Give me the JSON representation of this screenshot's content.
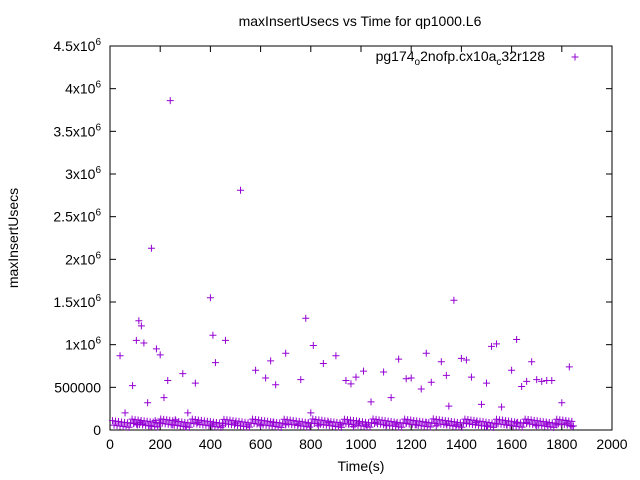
{
  "chart_data": {
    "type": "scatter",
    "title": "maxInsertUsecs vs Time for qp1000.L6",
    "xlabel": "Time(s)",
    "ylabel": "maxInsertUsecs",
    "xlim": [
      0,
      2000
    ],
    "ylim": [
      0,
      4500000
    ],
    "x_ticks": [
      "0",
      "200",
      "400",
      "600",
      "800",
      "1000",
      "1200",
      "1400",
      "1600",
      "1800",
      "2000"
    ],
    "y_ticks": [
      {
        "label": "0",
        "value": 0
      },
      {
        "label": "500000",
        "value": 500000
      },
      {
        "label": "1x10",
        "exp": "6",
        "value": 1000000
      },
      {
        "label": "1.5x10",
        "exp": "6",
        "value": 1500000
      },
      {
        "label": "2x10",
        "exp": "6",
        "value": 2000000
      },
      {
        "label": "2.5x10",
        "exp": "6",
        "value": 2500000
      },
      {
        "label": "3x10",
        "exp": "6",
        "value": 3000000
      },
      {
        "label": "3.5x10",
        "exp": "6",
        "value": 3500000
      },
      {
        "label": "4x10",
        "exp": "6",
        "value": 4000000
      },
      {
        "label": "4.5x10",
        "exp": "6",
        "value": 4500000
      }
    ],
    "grid": false,
    "legend_position": "top-right",
    "series": [
      {
        "name": "pg174_o2nofp.cx10a_c32r128",
        "name_parts": [
          {
            "t": "pg174"
          },
          {
            "t": "o",
            "sub": true
          },
          {
            "t": "2nofp.cx10a"
          },
          {
            "t": "c",
            "sub": true
          },
          {
            "t": "32r128"
          }
        ],
        "color": "#9400d3",
        "marker": "plus",
        "x": [
          40,
          60,
          90,
          105,
          115,
          125,
          135,
          150,
          165,
          185,
          200,
          215,
          230,
          240,
          260,
          290,
          310,
          340,
          400,
          410,
          420,
          460,
          520,
          580,
          620,
          640,
          660,
          700,
          760,
          780,
          800,
          810,
          850,
          900,
          940,
          960,
          980,
          1010,
          1040,
          1090,
          1120,
          1150,
          1180,
          1200,
          1240,
          1260,
          1280,
          1320,
          1340,
          1350,
          1370,
          1400,
          1420,
          1440,
          1480,
          1500,
          1520,
          1540,
          1560,
          1600,
          1620,
          1640,
          1660,
          1680,
          1700,
          1720,
          1740,
          1760,
          1800,
          1830,
          95,
          110,
          120,
          130,
          160,
          180,
          200,
          250,
          300,
          350,
          410,
          450,
          500,
          550,
          600,
          650,
          700,
          750,
          790,
          830,
          870,
          920,
          950,
          970,
          990,
          1020,
          1060,
          1100,
          1140,
          1180,
          1220,
          1260,
          1300,
          1340,
          1380,
          1420,
          1460,
          1500,
          1540,
          1580,
          1620,
          1660,
          1700,
          1740,
          1780,
          1820,
          1840
        ],
        "y": [
          870000,
          200000,
          520000,
          1050000,
          1280000,
          1220000,
          1020000,
          320000,
          2130000,
          950000,
          880000,
          380000,
          580000,
          3860000,
          120000,
          660000,
          200000,
          550000,
          1550000,
          1110000,
          790000,
          1050000,
          2810000,
          700000,
          610000,
          810000,
          530000,
          900000,
          590000,
          1310000,
          200000,
          990000,
          780000,
          870000,
          580000,
          540000,
          620000,
          690000,
          330000,
          680000,
          380000,
          830000,
          600000,
          610000,
          480000,
          900000,
          560000,
          800000,
          640000,
          280000,
          1520000,
          840000,
          820000,
          620000,
          300000,
          550000,
          980000,
          1010000,
          270000,
          700000,
          1060000,
          510000,
          570000,
          800000,
          590000,
          570000,
          580000,
          580000,
          320000,
          740000,
          80000,
          60000,
          90000,
          70000,
          50000,
          110000,
          80000,
          60000,
          40000,
          90000,
          70000,
          50000,
          80000,
          60000,
          50000,
          90000,
          60000,
          70000,
          80000,
          50000,
          90000,
          60000,
          70000,
          40000,
          80000,
          60000,
          90000,
          50000,
          70000,
          80000,
          60000,
          90000,
          50000,
          70000,
          60000,
          80000,
          90000,
          50000,
          70000,
          60000,
          80000,
          90000,
          50000,
          70000,
          60000,
          80000,
          40000
        ]
      }
    ]
  }
}
